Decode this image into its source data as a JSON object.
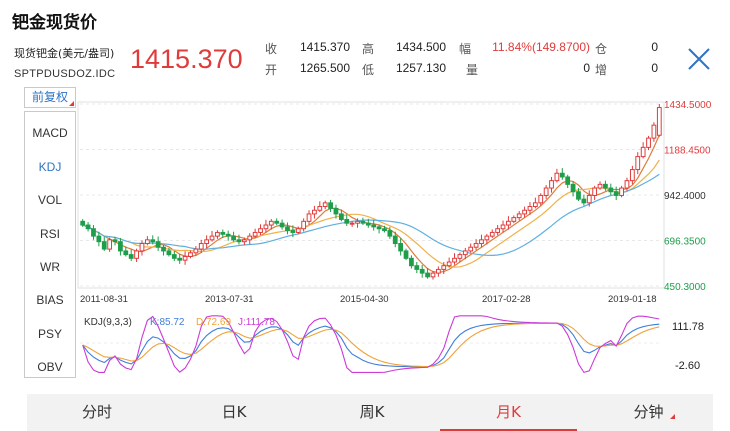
{
  "page": {
    "title": "钯金现货价"
  },
  "quote": {
    "name": "现货钯金(美元/盎司)",
    "code": "SPTPDUSDOZ.IDC",
    "last": "1415.370",
    "fields": [
      {
        "label": "收",
        "value": "1415.370",
        "red": false
      },
      {
        "label": "高",
        "value": "1434.500",
        "red": false
      },
      {
        "label": "幅",
        "value": "11.84%(149.8700)",
        "red": true
      },
      {
        "label": "仓",
        "value": "0",
        "red": false
      },
      {
        "label": "开",
        "value": "1265.500",
        "red": false
      },
      {
        "label": "低",
        "value": "1257.130",
        "red": false
      },
      {
        "label": "量",
        "value": "0",
        "red": false
      },
      {
        "label": "增",
        "value": "0",
        "red": false
      }
    ]
  },
  "sidebar": {
    "restore_label": "前复权",
    "indicators": [
      "MACD",
      "KDJ",
      "VOL",
      "RSI",
      "WR",
      "BIAS",
      "PSY",
      "OBV"
    ],
    "active_indicator": "KDJ"
  },
  "chart_data": {
    "type": "candlestick",
    "period": "monthly",
    "price_axis_labels": [
      "1434.5000",
      "1188.4500",
      "942.4000",
      "696.3500",
      "450.3000"
    ],
    "price_axis_range": [
      450.3,
      1434.5
    ],
    "date_labels": [
      "2011-08-31",
      "2013-07-31",
      "2015-04-30",
      "2017-02-28",
      "2019-01-18"
    ],
    "close_series": [
      780,
      760,
      720,
      690,
      650,
      700,
      690,
      640,
      620,
      600,
      640,
      680,
      700,
      690,
      660,
      640,
      620,
      600,
      590,
      610,
      630,
      650,
      680,
      700,
      720,
      740,
      730,
      720,
      700,
      690,
      700,
      720,
      740,
      760,
      780,
      800,
      790,
      770,
      750,
      740,
      760,
      800,
      840,
      860,
      880,
      900,
      870,
      840,
      810,
      790,
      790,
      800,
      790,
      780,
      770,
      760,
      750,
      720,
      680,
      640,
      600,
      560,
      540,
      520,
      500,
      520,
      540,
      560,
      580,
      600,
      620,
      640,
      660,
      680,
      700,
      720,
      740,
      760,
      780,
      800,
      820,
      840,
      860,
      880,
      900,
      940,
      980,
      1020,
      1060,
      1040,
      1000,
      960,
      920,
      900,
      940,
      980,
      1000,
      980,
      960,
      940,
      980,
      1020,
      1080,
      1150,
      1200,
      1250,
      1320,
      1415.37
    ],
    "open_last": 1265.5,
    "high_last": 1434.5,
    "low_last": 1257.13,
    "kdj": {
      "label": "KDJ(9,3,3)",
      "k_label": "K:85.72",
      "d_label": "D:72.69",
      "j_label": "J:111.78",
      "axis_labels": [
        "111.78",
        "-2.60"
      ],
      "axis_range": [
        -2.6,
        111.78
      ]
    },
    "colors": {
      "up": "#e03b3b",
      "down": "#1e9e4a",
      "k": "#3f7ed8",
      "d": "#f0a23a",
      "j": "#cc3ad8",
      "ma1": "#e07a3a",
      "ma2": "#f0b24a",
      "ma3": "#5fb0e0"
    }
  },
  "tabs": {
    "items": [
      "分时",
      "日K",
      "周K",
      "月K",
      "分钟"
    ],
    "active": "月K"
  }
}
